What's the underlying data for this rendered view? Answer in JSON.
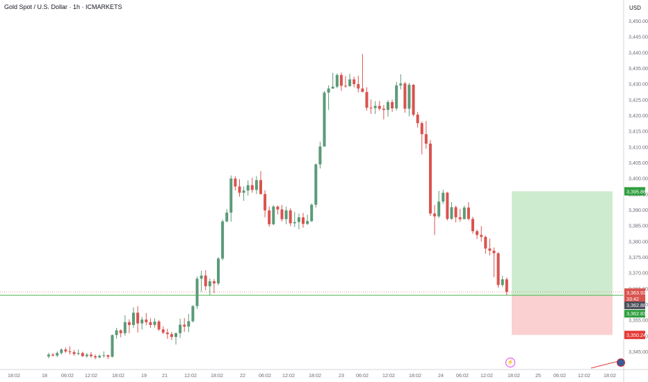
{
  "header": {
    "symbol_title": "Gold Spot / U.S. Dollar · 1h · ICMARKETS",
    "currency": "USD"
  },
  "axis": {
    "price_ticks": [
      "3,450.00",
      "3,445.00",
      "3,440.00",
      "3,435.00",
      "3,430.00",
      "3,425.00",
      "3,420.00",
      "3,415.00",
      "3,410.00",
      "3,405.00",
      "3,400.00",
      "3,395.00",
      "3,390.00",
      "3,385.00",
      "3,380.00",
      "3,375.00",
      "3,370.00",
      "3,365.00",
      "3,360.00",
      "3,355.00",
      "3,350.00",
      "3,345.00"
    ],
    "time_ticks": [
      "18:02",
      "18",
      "06:02",
      "12:02",
      "18:02",
      "19",
      "21",
      "12:02",
      "18:02",
      "22",
      "06:02",
      "12:02",
      "18:02",
      "23",
      "06:02",
      "12:02",
      "18:02",
      "24",
      "06:02",
      "12:02",
      "18:02",
      "25",
      "06:02",
      "12:02",
      "18:02"
    ]
  },
  "price_labels": {
    "take_profit": "3,395.86",
    "current_price": "3,363.92",
    "countdown": "33:42",
    "entry_top": "3,362.88",
    "entry": "3,362.83",
    "stop_loss": "3,350.24"
  },
  "colors": {
    "up": "#5b9a78",
    "down": "#d9534f",
    "profit_zone": "#cdeccf",
    "loss_zone": "#fbd0d0",
    "entry_line": "#4caf50",
    "current_label": "#d9534f",
    "tp_label": "#2e9e3e",
    "sl_label": "#e53935",
    "grey_label": "#4a4e59"
  },
  "icons": {
    "event_marker": "lightning-icon",
    "currency_flag": "us-flag-icon"
  },
  "chart_data": {
    "type": "candlestick",
    "title": "Gold Spot / U.S. Dollar · 1h · ICMARKETS",
    "ylim": [
      3342,
      3452
    ],
    "candles": [
      {
        "o": 3343.4,
        "h": 3344.6,
        "l": 3342.8,
        "c": 3344.0
      },
      {
        "o": 3344.0,
        "h": 3344.5,
        "l": 3343.4,
        "c": 3343.7
      },
      {
        "o": 3343.7,
        "h": 3345.0,
        "l": 3343.2,
        "c": 3344.5
      },
      {
        "o": 3344.5,
        "h": 3346.0,
        "l": 3344.0,
        "c": 3345.6
      },
      {
        "o": 3345.6,
        "h": 3346.3,
        "l": 3344.5,
        "c": 3345.0
      },
      {
        "o": 3345.0,
        "h": 3346.6,
        "l": 3344.0,
        "c": 3344.8
      },
      {
        "o": 3344.8,
        "h": 3345.5,
        "l": 3343.6,
        "c": 3344.2
      },
      {
        "o": 3344.2,
        "h": 3345.6,
        "l": 3343.8,
        "c": 3344.5
      },
      {
        "o": 3344.5,
        "h": 3344.9,
        "l": 3343.2,
        "c": 3343.5
      },
      {
        "o": 3343.5,
        "h": 3344.5,
        "l": 3343.0,
        "c": 3344.0
      },
      {
        "o": 3344.0,
        "h": 3344.8,
        "l": 3343.0,
        "c": 3343.5
      },
      {
        "o": 3343.5,
        "h": 3344.0,
        "l": 3342.5,
        "c": 3343.1
      },
      {
        "o": 3343.1,
        "h": 3344.0,
        "l": 3342.8,
        "c": 3343.6
      },
      {
        "o": 3343.6,
        "h": 3345.0,
        "l": 3343.0,
        "c": 3343.8
      },
      {
        "o": 3343.8,
        "h": 3344.0,
        "l": 3342.6,
        "c": 3343.3
      },
      {
        "o": 3343.3,
        "h": 3350.4,
        "l": 3343.1,
        "c": 3350.2
      },
      {
        "o": 3350.2,
        "h": 3352.5,
        "l": 3349.0,
        "c": 3351.7
      },
      {
        "o": 3351.7,
        "h": 3352.0,
        "l": 3349.5,
        "c": 3350.8
      },
      {
        "o": 3350.8,
        "h": 3356.5,
        "l": 3350.0,
        "c": 3354.3
      },
      {
        "o": 3354.3,
        "h": 3355.2,
        "l": 3350.8,
        "c": 3353.4
      },
      {
        "o": 3353.4,
        "h": 3359.0,
        "l": 3352.5,
        "c": 3357.3
      },
      {
        "o": 3357.3,
        "h": 3359.4,
        "l": 3351.0,
        "c": 3353.9
      },
      {
        "o": 3353.9,
        "h": 3356.0,
        "l": 3352.0,
        "c": 3355.1
      },
      {
        "o": 3355.1,
        "h": 3357.2,
        "l": 3353.3,
        "c": 3354.3
      },
      {
        "o": 3354.3,
        "h": 3355.5,
        "l": 3352.5,
        "c": 3353.4
      },
      {
        "o": 3353.4,
        "h": 3355.5,
        "l": 3352.6,
        "c": 3354.5
      },
      {
        "o": 3354.5,
        "h": 3355.0,
        "l": 3351.5,
        "c": 3352.0
      },
      {
        "o": 3352.0,
        "h": 3353.0,
        "l": 3350.5,
        "c": 3351.0
      },
      {
        "o": 3351.0,
        "h": 3352.2,
        "l": 3349.0,
        "c": 3350.5
      },
      {
        "o": 3350.5,
        "h": 3351.2,
        "l": 3348.6,
        "c": 3349.6
      },
      {
        "o": 3349.6,
        "h": 3351.0,
        "l": 3347.2,
        "c": 3350.8
      },
      {
        "o": 3350.8,
        "h": 3355.4,
        "l": 3349.3,
        "c": 3353.5
      },
      {
        "o": 3353.5,
        "h": 3355.6,
        "l": 3351.2,
        "c": 3352.9
      },
      {
        "o": 3352.9,
        "h": 3356.9,
        "l": 3351.1,
        "c": 3354.6
      },
      {
        "o": 3354.6,
        "h": 3359.7,
        "l": 3354.2,
        "c": 3359.4
      },
      {
        "o": 3359.4,
        "h": 3368.8,
        "l": 3358.5,
        "c": 3368.1
      },
      {
        "o": 3368.1,
        "h": 3370.6,
        "l": 3364.0,
        "c": 3369.1
      },
      {
        "o": 3369.1,
        "h": 3370.8,
        "l": 3364.4,
        "c": 3365.7
      },
      {
        "o": 3365.7,
        "h": 3368.2,
        "l": 3362.8,
        "c": 3367.3
      },
      {
        "o": 3367.3,
        "h": 3368.0,
        "l": 3363.5,
        "c": 3366.6
      },
      {
        "o": 3366.6,
        "h": 3375.0,
        "l": 3366.0,
        "c": 3374.5
      },
      {
        "o": 3374.5,
        "h": 3386.9,
        "l": 3373.9,
        "c": 3386.3
      },
      {
        "o": 3386.3,
        "h": 3390.2,
        "l": 3386.0,
        "c": 3389.1
      },
      {
        "o": 3389.1,
        "h": 3400.9,
        "l": 3386.2,
        "c": 3399.9
      },
      {
        "o": 3399.9,
        "h": 3400.6,
        "l": 3396.1,
        "c": 3397.4
      },
      {
        "o": 3397.4,
        "h": 3399.7,
        "l": 3394.2,
        "c": 3395.4
      },
      {
        "o": 3395.4,
        "h": 3397.4,
        "l": 3392.8,
        "c": 3396.1
      },
      {
        "o": 3396.1,
        "h": 3399.3,
        "l": 3394.5,
        "c": 3397.8
      },
      {
        "o": 3397.8,
        "h": 3400.2,
        "l": 3395.4,
        "c": 3396.3
      },
      {
        "o": 3396.3,
        "h": 3400.7,
        "l": 3395.0,
        "c": 3399.4
      },
      {
        "o": 3399.4,
        "h": 3402.3,
        "l": 3394.8,
        "c": 3395.0
      },
      {
        "o": 3395.0,
        "h": 3396.2,
        "l": 3387.6,
        "c": 3389.8
      },
      {
        "o": 3389.8,
        "h": 3391.0,
        "l": 3384.6,
        "c": 3385.4
      },
      {
        "o": 3385.4,
        "h": 3391.5,
        "l": 3385.1,
        "c": 3391.0
      },
      {
        "o": 3391.0,
        "h": 3391.3,
        "l": 3388.5,
        "c": 3390.1
      },
      {
        "o": 3390.1,
        "h": 3391.5,
        "l": 3386.3,
        "c": 3387.0
      },
      {
        "o": 3387.0,
        "h": 3391.0,
        "l": 3385.4,
        "c": 3389.8
      },
      {
        "o": 3389.8,
        "h": 3390.5,
        "l": 3384.8,
        "c": 3385.7
      },
      {
        "o": 3385.7,
        "h": 3389.3,
        "l": 3384.5,
        "c": 3386.1
      },
      {
        "o": 3386.1,
        "h": 3388.8,
        "l": 3383.8,
        "c": 3387.6
      },
      {
        "o": 3387.6,
        "h": 3389.0,
        "l": 3384.3,
        "c": 3385.5
      },
      {
        "o": 3385.5,
        "h": 3388.4,
        "l": 3385.2,
        "c": 3386.4
      },
      {
        "o": 3386.4,
        "h": 3392.0,
        "l": 3386.1,
        "c": 3391.6
      },
      {
        "o": 3391.6,
        "h": 3404.7,
        "l": 3390.7,
        "c": 3404.4
      },
      {
        "o": 3404.4,
        "h": 3411.6,
        "l": 3403.1,
        "c": 3410.1
      },
      {
        "o": 3410.1,
        "h": 3427.7,
        "l": 3410.0,
        "c": 3427.2
      },
      {
        "o": 3427.2,
        "h": 3429.5,
        "l": 3421.7,
        "c": 3428.5
      },
      {
        "o": 3428.5,
        "h": 3433.5,
        "l": 3428.4,
        "c": 3429.1
      },
      {
        "o": 3429.1,
        "h": 3433.3,
        "l": 3428.6,
        "c": 3432.8
      },
      {
        "o": 3432.8,
        "h": 3433.6,
        "l": 3427.8,
        "c": 3429.4
      },
      {
        "o": 3429.4,
        "h": 3432.4,
        "l": 3428.7,
        "c": 3429.3
      },
      {
        "o": 3429.3,
        "h": 3433.2,
        "l": 3429.0,
        "c": 3431.4
      },
      {
        "o": 3431.4,
        "h": 3432.3,
        "l": 3428.9,
        "c": 3429.9
      },
      {
        "o": 3429.9,
        "h": 3432.6,
        "l": 3427.3,
        "c": 3428.5
      },
      {
        "o": 3428.5,
        "h": 3439.5,
        "l": 3428.1,
        "c": 3427.4
      },
      {
        "o": 3427.4,
        "h": 3428.9,
        "l": 3421.5,
        "c": 3422.4
      },
      {
        "o": 3422.4,
        "h": 3425.0,
        "l": 3420.5,
        "c": 3422.3
      },
      {
        "o": 3422.3,
        "h": 3424.5,
        "l": 3420.4,
        "c": 3423.0
      },
      {
        "o": 3423.0,
        "h": 3424.6,
        "l": 3421.4,
        "c": 3422.1
      },
      {
        "o": 3422.1,
        "h": 3423.3,
        "l": 3418.7,
        "c": 3421.7
      },
      {
        "o": 3421.7,
        "h": 3424.8,
        "l": 3419.6,
        "c": 3424.2
      },
      {
        "o": 3424.2,
        "h": 3425.0,
        "l": 3421.1,
        "c": 3422.2
      },
      {
        "o": 3422.2,
        "h": 3430.6,
        "l": 3421.5,
        "c": 3429.5
      },
      {
        "o": 3429.5,
        "h": 3433.0,
        "l": 3428.2,
        "c": 3430.1
      },
      {
        "o": 3430.1,
        "h": 3430.6,
        "l": 3420.8,
        "c": 3422.1
      },
      {
        "o": 3422.1,
        "h": 3430.3,
        "l": 3419.7,
        "c": 3429.7
      },
      {
        "o": 3429.7,
        "h": 3429.9,
        "l": 3419.6,
        "c": 3420.2
      },
      {
        "o": 3420.2,
        "h": 3421.1,
        "l": 3416.1,
        "c": 3417.5
      },
      {
        "o": 3417.5,
        "h": 3418.0,
        "l": 3407.6,
        "c": 3414.0
      },
      {
        "o": 3414.0,
        "h": 3418.2,
        "l": 3409.4,
        "c": 3411.0
      },
      {
        "o": 3411.0,
        "h": 3412.2,
        "l": 3388.0,
        "c": 3388.8
      },
      {
        "o": 3388.8,
        "h": 3391.5,
        "l": 3382.0,
        "c": 3387.9
      },
      {
        "o": 3387.9,
        "h": 3396.0,
        "l": 3387.4,
        "c": 3392.6
      },
      {
        "o": 3392.6,
        "h": 3396.4,
        "l": 3391.8,
        "c": 3395.4
      },
      {
        "o": 3395.4,
        "h": 3395.7,
        "l": 3386.6,
        "c": 3387.1
      },
      {
        "o": 3387.1,
        "h": 3392.4,
        "l": 3386.8,
        "c": 3390.8
      },
      {
        "o": 3390.8,
        "h": 3391.3,
        "l": 3386.0,
        "c": 3387.6
      },
      {
        "o": 3387.6,
        "h": 3390.3,
        "l": 3386.2,
        "c": 3387.0
      },
      {
        "o": 3387.0,
        "h": 3391.3,
        "l": 3387.0,
        "c": 3390.7
      },
      {
        "o": 3390.7,
        "h": 3392.4,
        "l": 3386.6,
        "c": 3387.1
      },
      {
        "o": 3387.1,
        "h": 3387.8,
        "l": 3382.4,
        "c": 3383.2
      },
      {
        "o": 3383.2,
        "h": 3383.7,
        "l": 3380.7,
        "c": 3382.0
      },
      {
        "o": 3382.0,
        "h": 3384.8,
        "l": 3379.9,
        "c": 3381.4
      },
      {
        "o": 3381.4,
        "h": 3381.8,
        "l": 3376.0,
        "c": 3377.7
      },
      {
        "o": 3377.7,
        "h": 3380.8,
        "l": 3375.5,
        "c": 3377.0
      },
      {
        "o": 3377.0,
        "h": 3378.0,
        "l": 3368.6,
        "c": 3376.2
      },
      {
        "o": 3376.2,
        "h": 3376.5,
        "l": 3365.2,
        "c": 3366.1
      },
      {
        "o": 3366.1,
        "h": 3369.0,
        "l": 3365.5,
        "c": 3367.9
      },
      {
        "o": 3367.9,
        "h": 3368.5,
        "l": 3362.9,
        "c": 3363.9
      }
    ],
    "position": {
      "entry": 3362.83,
      "take_profit": 3395.86,
      "stop_loss": 3350.24,
      "current": 3363.92
    }
  }
}
